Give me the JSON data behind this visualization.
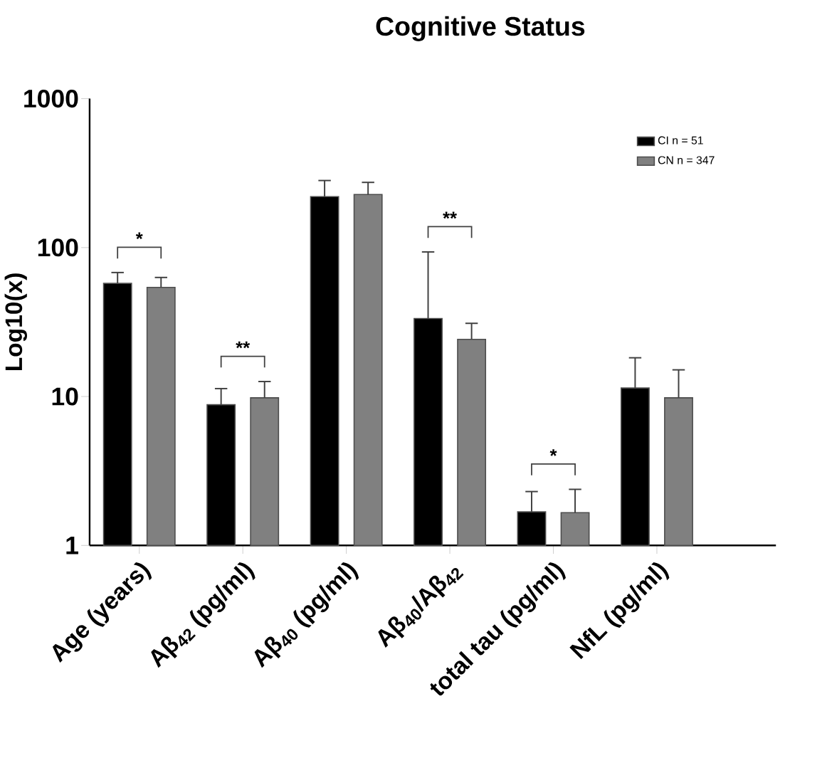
{
  "chart_data": {
    "type": "bar",
    "title": "Cognitive Status",
    "ylabel": "Log10(x)",
    "categories": [
      "Age (years)",
      "Aβ$_{42}$ (pg/ml)",
      "Aβ$_{40}$ (pg/ml)",
      "Aβ$_{40}$/Aβ$_{42}$",
      "total tau (pg/ml)",
      "NfL (pg/ml)"
    ],
    "series": [
      {
        "name": "CI n = 51",
        "color": "#000000",
        "values": [
          57.5,
          8.8,
          220,
          33.4,
          1.68,
          11.4
        ],
        "errors": [
          [
            57.5,
            68
          ],
          [
            8.8,
            11.3
          ],
          [
            220,
            282
          ],
          [
            33.4,
            93.5
          ],
          [
            1.68,
            2.3
          ],
          [
            11.4,
            18.2
          ]
        ]
      },
      {
        "name": "CN n = 347",
        "color": "#808080",
        "values": [
          54,
          9.8,
          227,
          24.2,
          1.66,
          9.8
        ],
        "errors": [
          [
            54,
            63
          ],
          [
            9.8,
            12.6
          ],
          [
            227,
            274
          ],
          [
            24.2,
            31
          ],
          [
            1.66,
            2.38
          ],
          [
            9.8,
            15.1
          ]
        ]
      }
    ],
    "annotations": [
      "*",
      "**",
      "**",
      "*"
    ],
    "log": "y",
    "ylim": [
      1,
      1000
    ],
    "yticks": [
      1,
      10,
      100,
      1000
    ],
    "legend": "top right",
    "grid": false
  }
}
